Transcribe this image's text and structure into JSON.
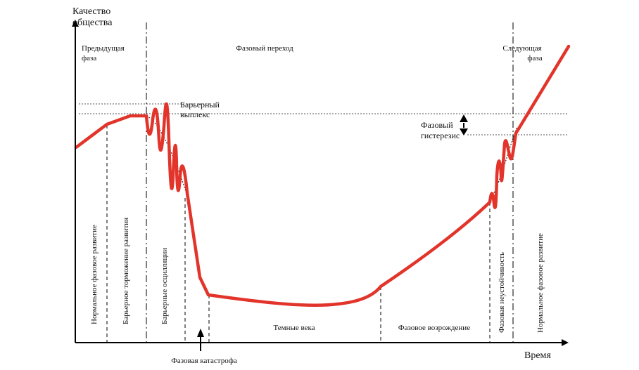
{
  "axes": {
    "y_label_line1": "Качество",
    "y_label_line2": "общества",
    "x_label": "Время"
  },
  "top_labels": {
    "previous_phase_line1": "Предыдущая",
    "previous_phase_line2": "фаза",
    "phase_transition": "Фазовый переход",
    "next_phase_line1": "Следующая",
    "next_phase_line2": "фаза"
  },
  "annotations": {
    "barrier_line1": "Барьерный",
    "barrier_line2": "выплекс",
    "hysteresis_line1": "Фазовый",
    "hysteresis_line2": "гистерезис",
    "catastrophe": "Фазовая катастрофа"
  },
  "stages_vertical": {
    "normal_development": "Нормальное фазовое развитие",
    "barrier_slowdown": "Барьерное торможение развития",
    "barrier_oscillations": "Барьерные осцилляции",
    "phase_instability": "Фазовая неустойчивость",
    "normal_development_next": "Нормальное фазовое развитие"
  },
  "stages_horizontal": {
    "dark_ages": "Темные века",
    "renaissance": "Фазовое возрождение"
  },
  "colors": {
    "curve": "#e2342a",
    "axis": "#000000",
    "dashed": "#000000",
    "dotted": "#555555"
  }
}
